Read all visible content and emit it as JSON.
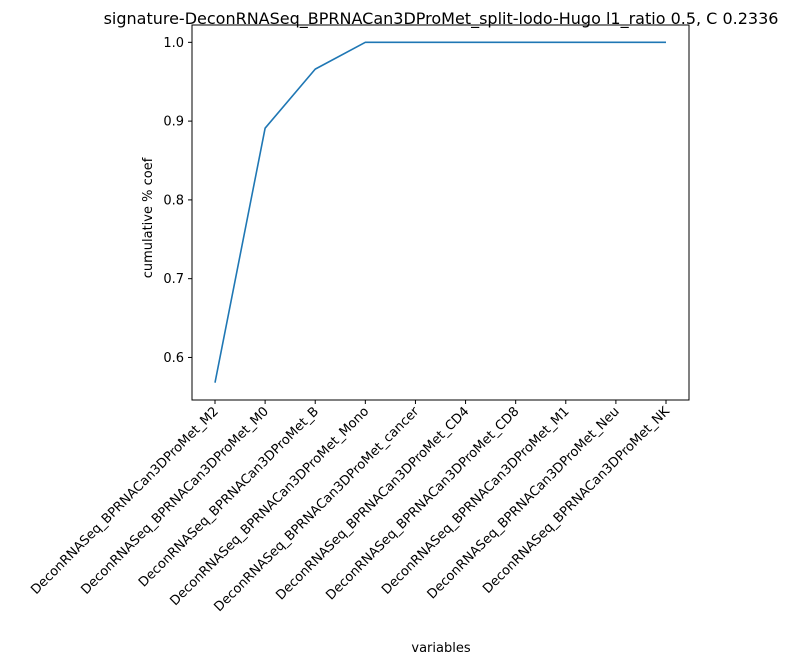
{
  "chart_data": {
    "type": "line",
    "title": "signature-DeconRNASeq_BPRNACan3DProMet_split-lodo-Hugo l1_ratio 0.5, C 0.2336",
    "xlabel": "variables",
    "ylabel": "cumulative % coef",
    "categories": [
      "DeconRNASeq_BPRNACan3DProMet_M2",
      "DeconRNASeq_BPRNACan3DProMet_M0",
      "DeconRNASeq_BPRNACan3DProMet_B",
      "DeconRNASeq_BPRNACan3DProMet_Mono",
      "DeconRNASeq_BPRNACan3DProMet_cancer",
      "DeconRNASeq_BPRNACan3DProMet_CD4",
      "DeconRNASeq_BPRNACan3DProMet_CD8",
      "DeconRNASeq_BPRNACan3DProMet_M1",
      "DeconRNASeq_BPRNACan3DProMet_Neu",
      "DeconRNASeq_BPRNACan3DProMet_NK"
    ],
    "series": [
      {
        "values": [
          0.568,
          0.891,
          0.966,
          1.0,
          1.0,
          1.0,
          1.0,
          1.0,
          1.0,
          1.0
        ]
      }
    ],
    "yticks": [
      "0.6",
      "0.7",
      "0.8",
      "0.9",
      "1.0"
    ],
    "ylim": [
      0.546,
      1.022
    ],
    "grid": false,
    "line_color": "#1f77b4"
  }
}
